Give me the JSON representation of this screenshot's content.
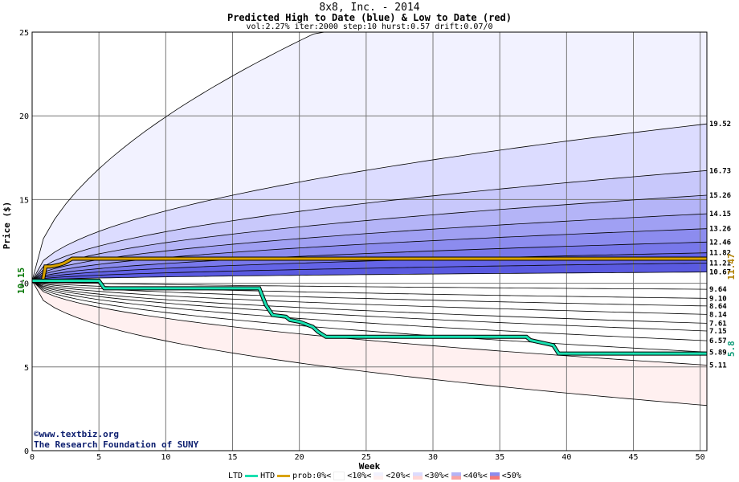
{
  "chart_data": {
    "type": "area",
    "title": "8x8, Inc. - 2014",
    "subtitle": "Predicted High to Date (blue) &  Low to Date (red)",
    "params": "vol:2.27% iter:2000 step:10 hurst:0.57 drift:0.07/0",
    "xlabel": "Week",
    "ylabel": "Price ($)",
    "xlim": [
      0,
      50.5
    ],
    "ylim": [
      0,
      25
    ],
    "x_ticks": [
      0,
      5,
      10,
      15,
      20,
      25,
      30,
      35,
      40,
      45,
      50
    ],
    "y_ticks": [
      0,
      5,
      10,
      15,
      20,
      25
    ],
    "start_price": "10.15",
    "current_high": "11.47",
    "current_low": "5.8",
    "high_levels": [
      "19.52",
      "16.73",
      "15.26",
      "14.15",
      "13.26",
      "12.46",
      "11.82",
      "11.21",
      "10.67"
    ],
    "low_levels": [
      "9.64",
      "9.10",
      "8.64",
      "8.14",
      "7.61",
      "7.15",
      "6.57",
      "5.89",
      "5.11"
    ],
    "htd_series": {
      "name": "HTD",
      "x": [
        0,
        0.8,
        1,
        1.4,
        2,
        2.4,
        3,
        50.5
      ],
      "y": [
        10.15,
        10.15,
        11.0,
        11.0,
        11.1,
        11.2,
        11.47,
        11.47
      ]
    },
    "ltd_series": {
      "name": "LTD",
      "x": [
        0,
        5,
        5.4,
        17,
        17.5,
        18,
        19,
        19.3,
        20,
        21,
        21.4,
        22,
        37,
        37.3,
        39,
        39.4,
        50.5
      ],
      "y": [
        10.15,
        10.15,
        9.7,
        9.7,
        8.7,
        8.1,
        8.0,
        7.8,
        7.7,
        7.4,
        7.1,
        6.8,
        6.8,
        6.6,
        6.3,
        5.8,
        5.8
      ]
    },
    "grid": true
  },
  "credits": {
    "line1": "©www.textbiz.org",
    "line2": "The Research Foundation of SUNY"
  },
  "legend": {
    "ltd": "LTD",
    "htd": "HTD",
    "prob": "prob:0%<",
    "p10": "<10%<",
    "p20": "<20%<",
    "p30": "<30%<",
    "p40": "<40%<",
    "p50": "<50%"
  },
  "colors": {
    "htd": "#d9a300",
    "ltd": "#19e0b0",
    "high_bands": [
      "#f2f2ff",
      "#dcdcff",
      "#c8c8fb",
      "#b4b4f7",
      "#a0a0f3",
      "#8c8cef",
      "#7878eb",
      "#6464e7",
      "#5a5ae0"
    ],
    "low_bands": [
      "#fff0f0",
      "#ffd6d6",
      "#fcbcbc",
      "#f9a4a4",
      "#f78e8e",
      "#f47878",
      "#f26a6a",
      "#f06060",
      "#ee5858"
    ]
  }
}
